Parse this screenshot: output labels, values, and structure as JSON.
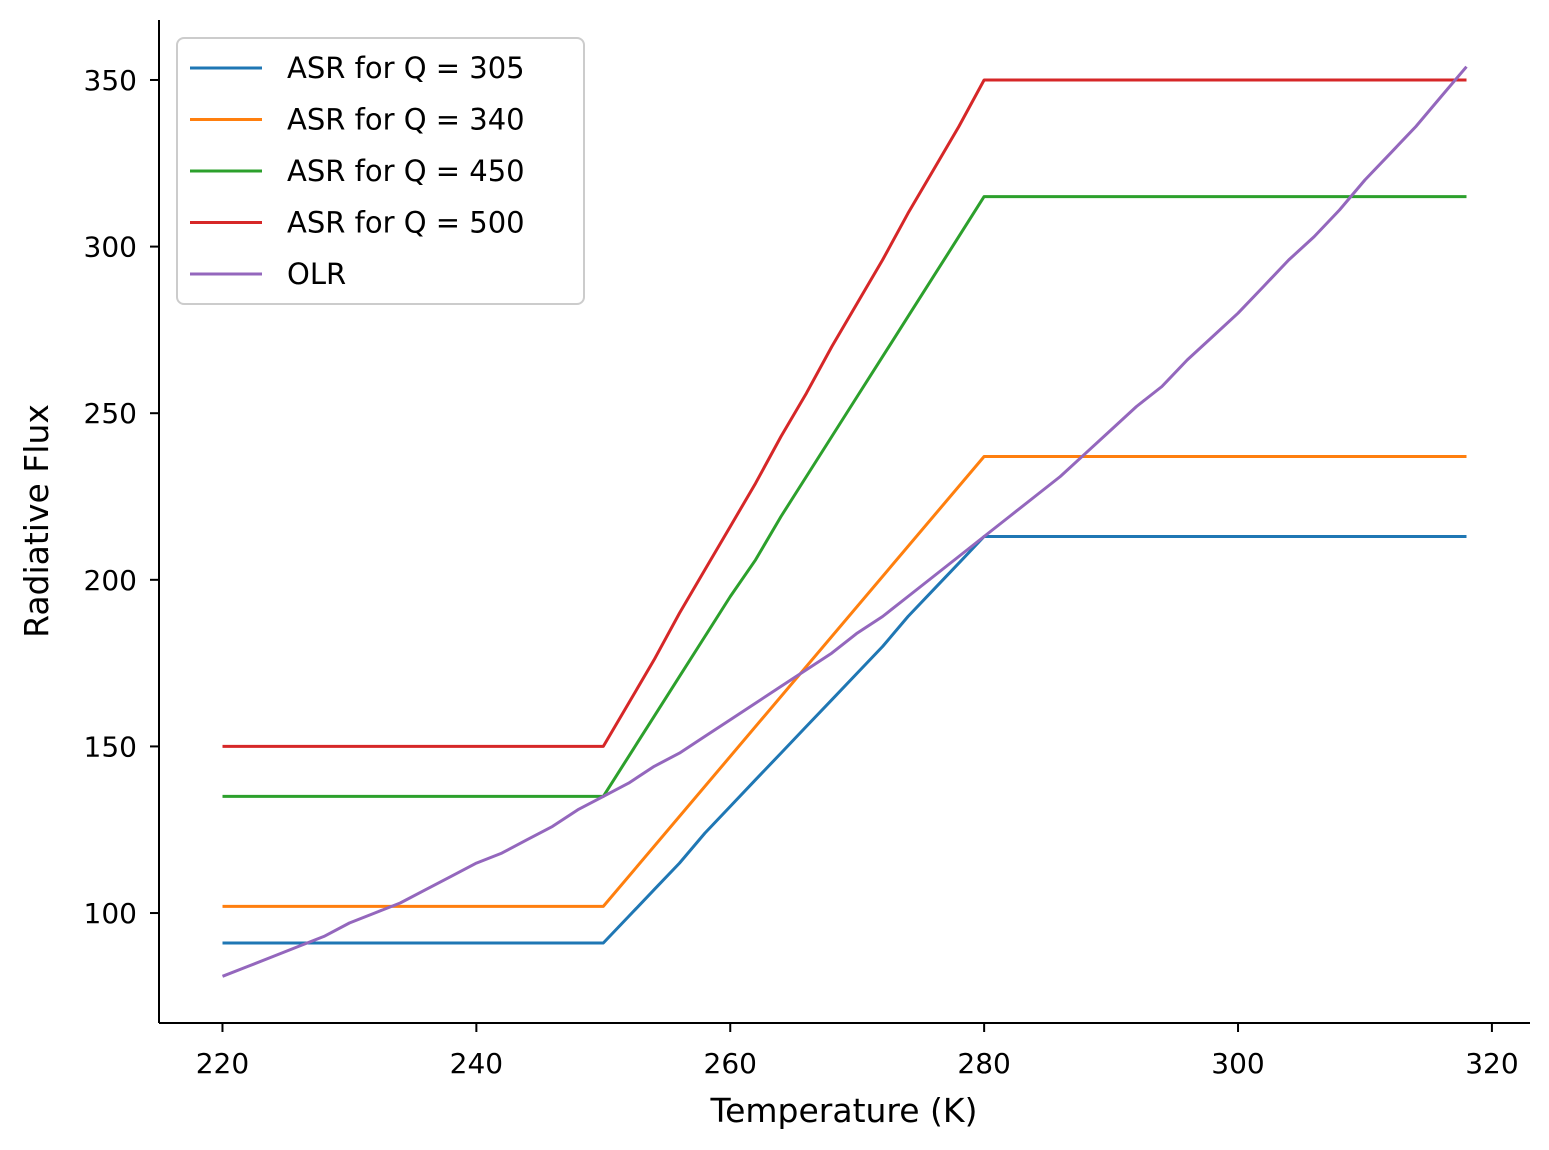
{
  "chart_data": {
    "type": "line",
    "title": "",
    "xlabel": "Temperature (K)",
    "ylabel": "Radiative Flux",
    "xlim": [
      215,
      323
    ],
    "ylim": [
      67,
      368
    ],
    "x_ticks": [
      220,
      240,
      260,
      280,
      300,
      320
    ],
    "y_ticks": [
      100,
      150,
      200,
      250,
      300,
      350
    ],
    "grid": false,
    "legend_position": "top-left",
    "series": [
      {
        "name": "ASR for Q = 305",
        "color": "#1f77b4",
        "x": [
          220,
          250,
          252,
          254,
          256,
          258,
          260,
          262,
          264,
          266,
          268,
          270,
          272,
          274,
          276,
          278,
          280,
          318
        ],
        "y": [
          91,
          91,
          99,
          107,
          115,
          124,
          132,
          140,
          148,
          156,
          164,
          172,
          180,
          189,
          197,
          205,
          213,
          213
        ]
      },
      {
        "name": "ASR for Q = 340",
        "color": "#ff7f0e",
        "x": [
          220,
          250,
          280,
          318
        ],
        "y": [
          102,
          102,
          237,
          237
        ]
      },
      {
        "name": "ASR for Q = 450",
        "color": "#2ca02c",
        "x": [
          220,
          250,
          252,
          254,
          256,
          258,
          260,
          262,
          264,
          266,
          268,
          270,
          272,
          274,
          276,
          278,
          280,
          318
        ],
        "y": [
          135,
          135,
          147,
          159,
          171,
          183,
          195,
          206,
          219,
          231,
          243,
          255,
          267,
          279,
          291,
          303,
          315,
          315
        ]
      },
      {
        "name": "ASR for Q = 500",
        "color": "#d62728",
        "x": [
          220,
          250,
          252,
          254,
          256,
          258,
          260,
          262,
          264,
          266,
          268,
          270,
          272,
          274,
          276,
          278,
          280,
          318
        ],
        "y": [
          150,
          150,
          163,
          176,
          190,
          203,
          216,
          229,
          243,
          256,
          270,
          283,
          296,
          310,
          323,
          336,
          350,
          350
        ]
      },
      {
        "name": "OLR",
        "color": "#9467bd",
        "x": [
          220,
          222,
          224,
          226,
          228,
          230,
          232,
          234,
          236,
          238,
          240,
          242,
          244,
          246,
          248,
          250,
          252,
          254,
          256,
          258,
          260,
          262,
          264,
          266,
          268,
          270,
          272,
          274,
          276,
          278,
          280,
          282,
          284,
          286,
          288,
          290,
          292,
          294,
          296,
          298,
          300,
          302,
          304,
          306,
          308,
          310,
          312,
          314,
          316,
          318
        ],
        "y": [
          81,
          84,
          87,
          90,
          93,
          97,
          100,
          103,
          107,
          111,
          115,
          118,
          122,
          126,
          131,
          135,
          139,
          144,
          148,
          153,
          158,
          163,
          168,
          173,
          178,
          184,
          189,
          195,
          201,
          207,
          213,
          219,
          225,
          231,
          238,
          245,
          252,
          258,
          266,
          273,
          280,
          288,
          296,
          303,
          311,
          320,
          328,
          336,
          345,
          354
        ]
      }
    ]
  }
}
